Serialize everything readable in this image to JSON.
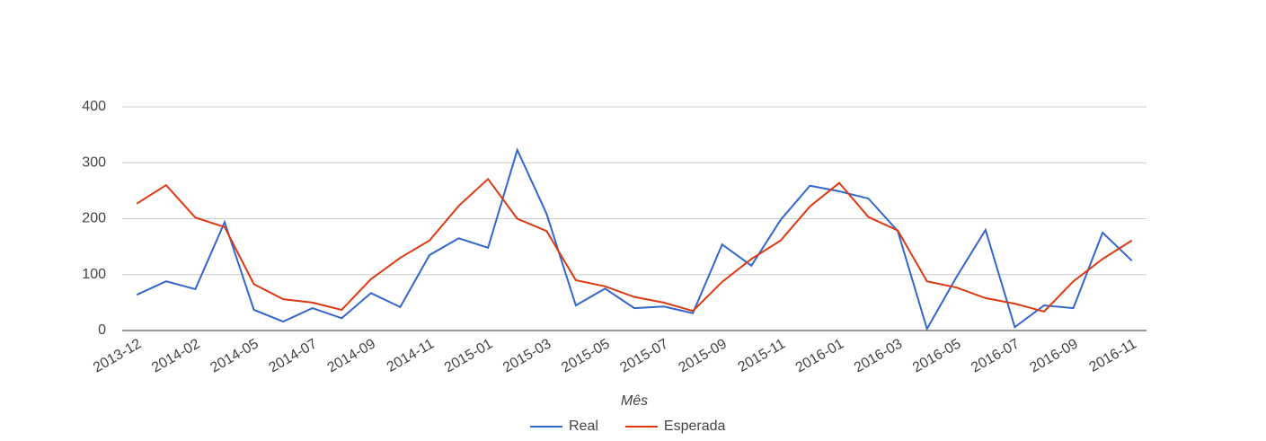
{
  "chart_data": {
    "type": "line",
    "x_label": "Mês",
    "categories": [
      "2013-12",
      null,
      "2014-02",
      null,
      "2014-05",
      null,
      "2014-07",
      null,
      "2014-09",
      null,
      "2014-11",
      null,
      "2015-01",
      null,
      "2015-03",
      null,
      "2015-05",
      null,
      "2015-07",
      null,
      "2015-09",
      null,
      "2015-11",
      null,
      "2016-01",
      null,
      "2016-03",
      null,
      "2016-05",
      null,
      "2016-07",
      null,
      "2016-09",
      null,
      "2016-11"
    ],
    "series": [
      {
        "name": "Real",
        "color": "#3366cc",
        "values": [
          64,
          88,
          74,
          194,
          37,
          16,
          40,
          22,
          67,
          42,
          135,
          165,
          148,
          323,
          209,
          45,
          75,
          40,
          43,
          31,
          154,
          116,
          198,
          259,
          249,
          236,
          178,
          3,
          95,
          180,
          6,
          45,
          40,
          175,
          125
        ]
      },
      {
        "name": "Esperada",
        "color": "#dc3912",
        "values": [
          227,
          260,
          202,
          185,
          83,
          56,
          50,
          37,
          92,
          130,
          161,
          223,
          271,
          200,
          178,
          90,
          79,
          60,
          50,
          35,
          87,
          128,
          161,
          222,
          264,
          203,
          179,
          88,
          77,
          58,
          48,
          34,
          88,
          128,
          161
        ]
      }
    ],
    "ylim": [
      0,
      400
    ],
    "yticks": [
      0,
      100,
      200,
      300,
      400
    ],
    "grid": true,
    "legend": "bottom"
  }
}
